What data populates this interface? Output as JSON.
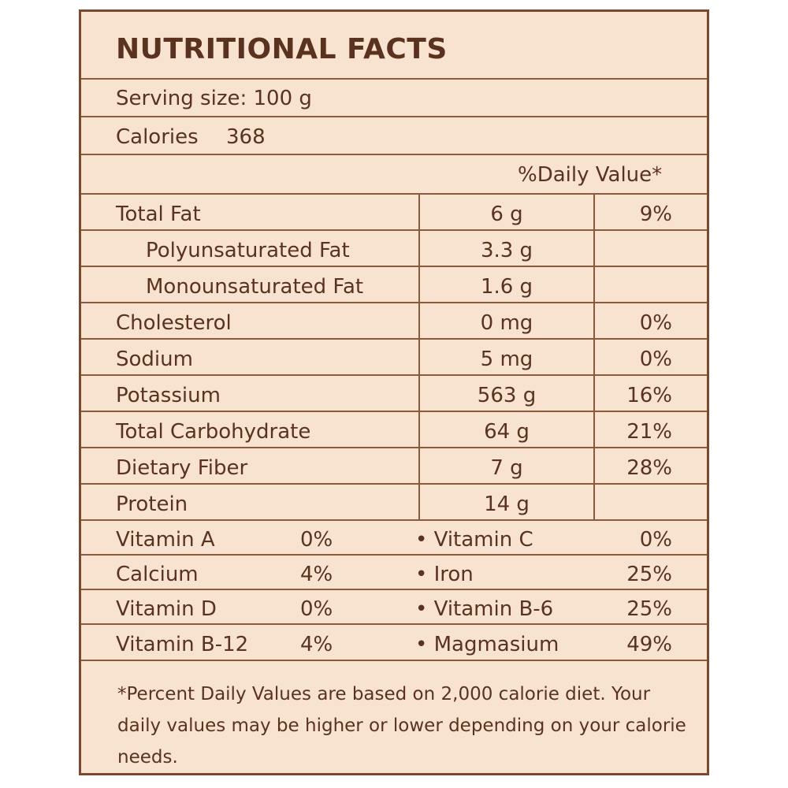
{
  "title": "NUTRITIONAL FACTS",
  "serving_size": "Serving size: 100 g",
  "calories": {
    "label": "Calories",
    "value": "368"
  },
  "daily_value_header": "%Daily Value*",
  "nutrients": [
    {
      "name": "Total Fat",
      "amount": "6 g",
      "dv": "9%"
    },
    {
      "name": "Polyunsaturated Fat",
      "amount": "3.3 g",
      "dv": ""
    },
    {
      "name": "Monounsaturated Fat",
      "amount": "1.6 g",
      "dv": ""
    },
    {
      "name": "Cholesterol",
      "amount": "0 mg",
      "dv": "0%"
    },
    {
      "name": "Sodium",
      "amount": "5 mg",
      "dv": "0%"
    },
    {
      "name": "Potassium",
      "amount": "563 g",
      "dv": "16%"
    },
    {
      "name": "Total Carbohydrate",
      "amount": "64 g",
      "dv": "21%"
    },
    {
      "name": "Dietary Fiber",
      "amount": "7 g",
      "dv": "28%"
    },
    {
      "name": "Protein",
      "amount": "14 g",
      "dv": ""
    }
  ],
  "vitamins": [
    {
      "left_name": "Vitamin A",
      "left_value": "0%",
      "right_name": "• Vitamin C",
      "right_value": "0%"
    },
    {
      "left_name": "Calcium",
      "left_value": "4%",
      "right_name": "• Iron",
      "right_value": "25%"
    },
    {
      "left_name": "Vitamin D",
      "left_value": "0%",
      "right_name": "• Vitamin B-6",
      "right_value": "25%"
    },
    {
      "left_name": "Vitamin B-12",
      "left_value": "4%",
      "right_name": "• Magmasium",
      "right_value": "49%"
    }
  ],
  "footnote": "*Percent Daily Values are based on 2,000 calorie diet. Your daily values may be higher or lower depending on your calorie needs."
}
